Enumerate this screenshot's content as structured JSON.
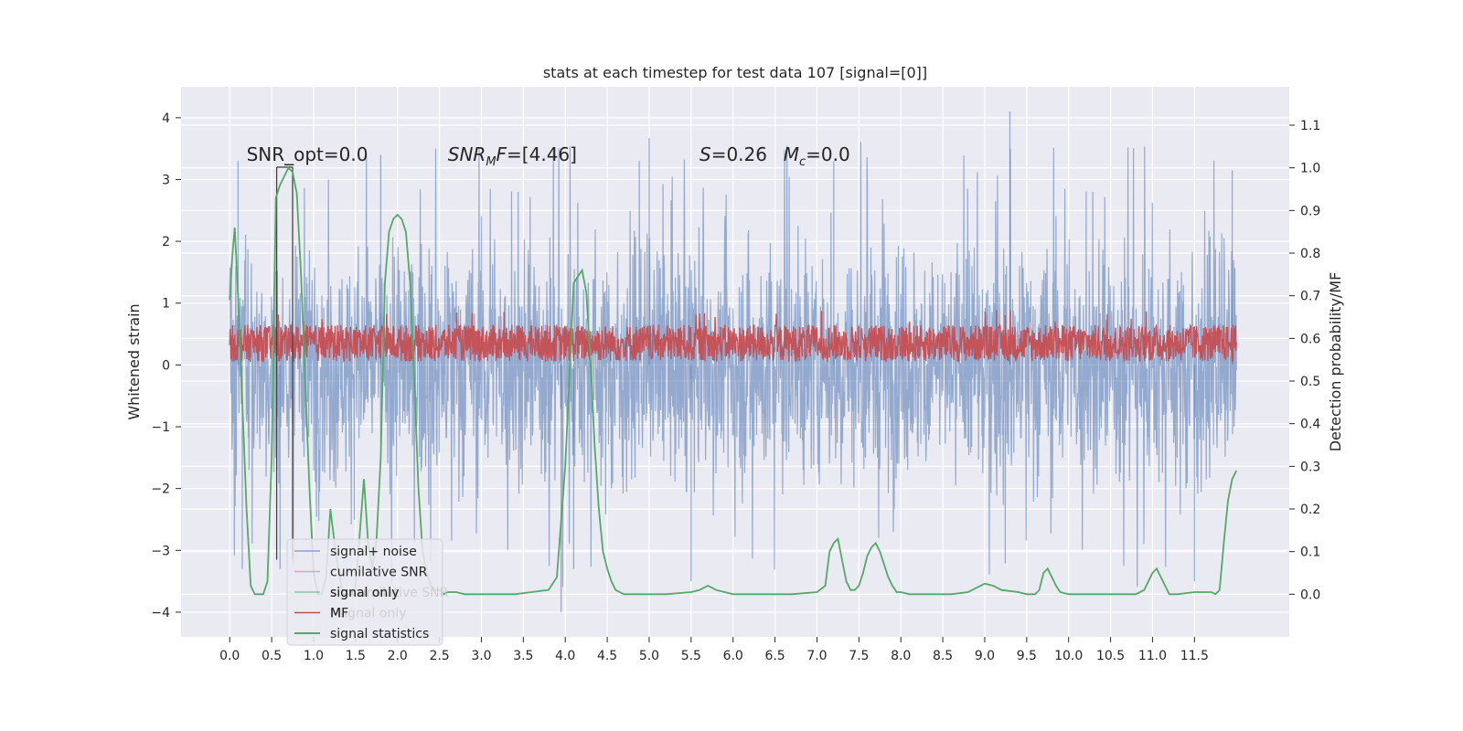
{
  "chart_data": {
    "type": "line",
    "title": "stats at each timestep for test data 107 [signal=[0]]",
    "xlabel": "",
    "ylabel": "Whitened strain",
    "ylabel_right": "Detection probability/MF",
    "xlim": [
      -0.58,
      12.63
    ],
    "ylim": [
      -4.4,
      4.5
    ],
    "ylim_right": [
      -0.1,
      1.19
    ],
    "x_ticks": [
      "0.0",
      "0.5",
      "1.0",
      "1.5",
      "2.0",
      "2.5",
      "3.0",
      "3.5",
      "4.0",
      "4.5",
      "5.0",
      "5.5",
      "6.0",
      "6.5",
      "7.0",
      "7.5",
      "8.0",
      "8.5",
      "9.0",
      "9.5",
      "10.0",
      "10.5",
      "11.0",
      "11.5"
    ],
    "y_ticks_left": [
      "4",
      "3",
      "2",
      "1",
      "0",
      "−1",
      "−2",
      "−3",
      "−4"
    ],
    "y_ticks_right": [
      "1.1",
      "1.0",
      "0.9",
      "0.8",
      "0.7",
      "0.6",
      "0.5",
      "0.4",
      "0.3",
      "0.2",
      "0.1",
      "0.0"
    ],
    "grid": true,
    "annotations": [
      {
        "text": "SNR_opt=0.0",
        "x": 0.2,
        "y": 3.3
      },
      {
        "text": "SNR_MF=[4.46]",
        "x": 2.6,
        "y": 3.3
      },
      {
        "text": "S=0.26",
        "x": 5.6,
        "y": 3.3
      },
      {
        "text": "M_c=0.0",
        "x": 6.6,
        "y": 3.3
      }
    ],
    "vertical_markers": [
      0.56,
      0.75
    ],
    "legend": {
      "placement": "lower-center",
      "entries": [
        {
          "label": "signal+ noise",
          "color": "#4c72b0"
        },
        {
          "label": "cumilative SNR",
          "color": "#dd8452"
        },
        {
          "label": "signal only",
          "color": "#55a868"
        },
        {
          "label": "MF",
          "color": "#c44e52"
        },
        {
          "label": "signal statistics",
          "color": "#55a868"
        }
      ],
      "ghost_labels": [
        "cumilative SNR",
        "signal only"
      ]
    },
    "series": [
      {
        "name": "signal+ noise",
        "axis": "left",
        "color": "#4c72b0",
        "x_range": [
          0.0,
          12.0
        ],
        "band_p": [
          -1.5,
          1.5
        ],
        "extremes": [
          -4.0,
          4.1
        ],
        "note_values": [
          4.1,
          -4.0,
          3.67,
          -3.5,
          3.4,
          -3.3,
          3.3
        ]
      },
      {
        "name": "MF",
        "axis": "left",
        "color": "#c44e52",
        "x_range": [
          0.0,
          12.0
        ],
        "band": [
          0.05,
          0.65
        ],
        "peak": 0.9
      },
      {
        "name": "signal statistics",
        "axis": "right",
        "color": "#55a868",
        "x": [
          0.0,
          0.03,
          0.06,
          0.1,
          0.15,
          0.2,
          0.25,
          0.3,
          0.35,
          0.4,
          0.45,
          0.5,
          0.55,
          0.6,
          0.65,
          0.7,
          0.75,
          0.8,
          0.85,
          0.9,
          0.95,
          1.0,
          1.05,
          1.1,
          1.15,
          1.2,
          1.25,
          1.3,
          1.35,
          1.4,
          1.45,
          1.5,
          1.55,
          1.6,
          1.65,
          1.7,
          1.75,
          1.8,
          1.85,
          1.9,
          1.95,
          2.0,
          2.05,
          2.1,
          2.15,
          2.2,
          2.25,
          2.3,
          2.35,
          2.4,
          2.45,
          2.5,
          2.55,
          2.6,
          2.65,
          2.7,
          2.8,
          3.0,
          3.2,
          3.4,
          3.6,
          3.8,
          3.9,
          4.0,
          4.1,
          4.2,
          4.25,
          4.3,
          4.35,
          4.4,
          4.45,
          4.5,
          4.55,
          4.6,
          4.65,
          4.7,
          4.75,
          4.8,
          4.9,
          5.0,
          5.2,
          5.5,
          5.6,
          5.7,
          5.8,
          6.0,
          6.2,
          6.5,
          6.7,
          7.0,
          7.1,
          7.15,
          7.2,
          7.25,
          7.3,
          7.35,
          7.4,
          7.45,
          7.5,
          7.55,
          7.6,
          7.65,
          7.7,
          7.75,
          7.8,
          7.85,
          7.9,
          7.95,
          8.0,
          8.1,
          8.2,
          8.4,
          8.6,
          8.8,
          9.0,
          9.1,
          9.2,
          9.4,
          9.5,
          9.6,
          9.65,
          9.7,
          9.75,
          9.8,
          9.85,
          9.9,
          10.0,
          10.2,
          10.5,
          10.8,
          10.9,
          11.0,
          11.05,
          11.1,
          11.15,
          11.2,
          11.3,
          11.5,
          11.7,
          11.75,
          11.8,
          11.85,
          11.9,
          11.95,
          12.0
        ],
        "values": [
          0.69,
          0.79,
          0.86,
          0.7,
          0.45,
          0.2,
          0.02,
          0.0,
          0.0,
          0.0,
          0.03,
          0.32,
          0.93,
          0.96,
          0.98,
          1.0,
          0.99,
          0.94,
          0.75,
          0.5,
          0.25,
          0.05,
          0.0,
          0.0,
          0.04,
          0.2,
          0.12,
          0.05,
          0.0,
          0.0,
          0.0,
          0.02,
          0.14,
          0.27,
          0.12,
          0.06,
          0.13,
          0.32,
          0.73,
          0.85,
          0.88,
          0.89,
          0.88,
          0.85,
          0.73,
          0.5,
          0.25,
          0.1,
          0.05,
          0.02,
          0.01,
          0.01,
          0.0,
          0.005,
          0.005,
          0.005,
          0.0,
          0.0,
          0.0,
          0.0,
          0.005,
          0.01,
          0.04,
          0.3,
          0.73,
          0.76,
          0.71,
          0.55,
          0.35,
          0.2,
          0.1,
          0.06,
          0.03,
          0.01,
          0.005,
          0.0,
          0.0,
          0.0,
          0.0,
          0.0,
          0.0,
          0.005,
          0.01,
          0.02,
          0.01,
          0.0,
          0.0,
          0.0,
          0.0,
          0.005,
          0.02,
          0.1,
          0.12,
          0.13,
          0.08,
          0.03,
          0.01,
          0.01,
          0.02,
          0.05,
          0.09,
          0.11,
          0.12,
          0.1,
          0.07,
          0.04,
          0.02,
          0.005,
          0.005,
          0.0,
          0.0,
          0.0,
          0.0,
          0.005,
          0.025,
          0.02,
          0.01,
          0.005,
          0.0,
          0.0,
          0.01,
          0.05,
          0.06,
          0.04,
          0.02,
          0.005,
          0.0,
          0.0,
          0.0,
          0.0,
          0.01,
          0.05,
          0.06,
          0.04,
          0.02,
          0.0,
          0.0,
          0.005,
          0.005,
          0.0,
          0.01,
          0.12,
          0.22,
          0.27,
          0.29
        ]
      }
    ]
  }
}
